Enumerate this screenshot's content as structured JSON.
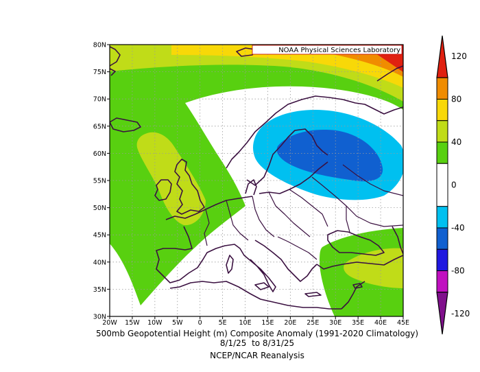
{
  "credit": "NOAA Physical Sciences Laboratory",
  "caption": {
    "line1": "500mb Geopotential Height (m) Composite Anomaly (1991-2020 Climatology)",
    "line2": "8/1/25  to 8/31/25",
    "line3": "NCEP/NCAR Reanalysis"
  },
  "lat_ticks": [
    "80N",
    "75N",
    "70N",
    "65N",
    "60N",
    "55N",
    "50N",
    "45N",
    "40N",
    "35N",
    "30N"
  ],
  "lat_values": [
    80,
    75,
    70,
    65,
    60,
    55,
    50,
    45,
    40,
    35,
    30
  ],
  "lon_ticks": [
    "20W",
    "15W",
    "10W",
    "5W",
    "0",
    "5E",
    "10E",
    "15E",
    "20E",
    "25E",
    "30E",
    "35E",
    "40E",
    "45E"
  ],
  "lon_values": [
    -20,
    -15,
    -10,
    -5,
    0,
    5,
    10,
    15,
    20,
    25,
    30,
    35,
    40,
    45
  ],
  "colorbar": {
    "labels": [
      "120",
      "80",
      "40",
      "0",
      "-40",
      "-80",
      "-120"
    ],
    "label_values": [
      120,
      80,
      40,
      0,
      -40,
      -80,
      -120
    ],
    "bins": [
      {
        "from": 100,
        "to": 120,
        "color": "#e02010"
      },
      {
        "from": 80,
        "to": 100,
        "color": "#f08c00"
      },
      {
        "from": 60,
        "to": 80,
        "color": "#f8d808"
      },
      {
        "from": 40,
        "to": 60,
        "color": "#c0dc18"
      },
      {
        "from": 20,
        "to": 40,
        "color": "#58d010"
      },
      {
        "from": -20,
        "to": 20,
        "color": "#ffffff"
      },
      {
        "from": -40,
        "to": -20,
        "color": "#00c0f0"
      },
      {
        "from": -60,
        "to": -40,
        "color": "#1060d0"
      },
      {
        "from": -80,
        "to": -60,
        "color": "#2018e0"
      },
      {
        "from": -100,
        "to": -80,
        "color": "#c010c0"
      },
      {
        "from": -120,
        "to": -100,
        "color": "#80108c"
      }
    ]
  },
  "colors": {
    "pos20": "#58d010",
    "pos40": "#c0dc18",
    "pos60": "#f8d808",
    "pos80": "#f08c00",
    "pos100": "#e02010",
    "neg20": "#00c0f0",
    "neg40": "#1060d0",
    "coast": "#3a1040",
    "grid": "#9a9a9a"
  }
}
